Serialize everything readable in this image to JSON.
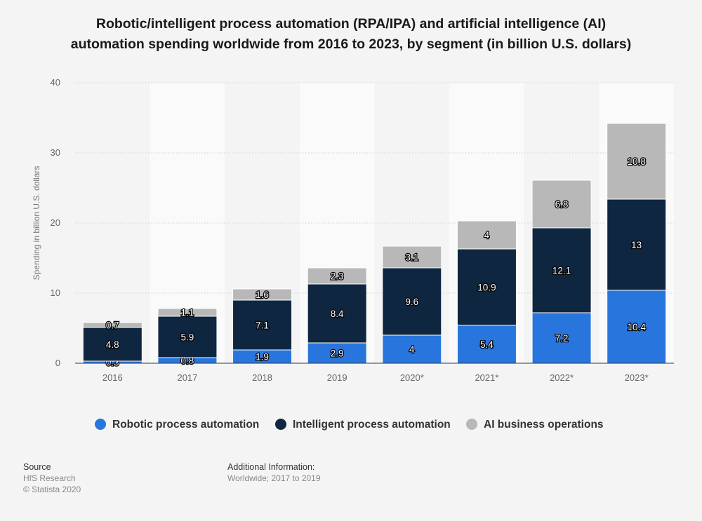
{
  "chart_data": {
    "type": "bar",
    "stacked": true,
    "title": "Robotic/intelligent process automation (RPA/IPA) and artificial intelligence (AI) automation spending worldwide from 2016 to 2023, by segment (in billion U.S. dollars)",
    "title_lines": [
      "Robotic/intelligent process automation (RPA/IPA) and artificial intelligence (AI)",
      "automation spending worldwide from 2016 to 2023, by segment (in billion U.S. dollars)"
    ],
    "xlabel": "",
    "ylabel": "Spending in billion U.S. dollars",
    "ylim": [
      0,
      40
    ],
    "yticks": [
      0,
      10,
      20,
      30,
      40
    ],
    "grid": true,
    "legend_position": "bottom",
    "categories": [
      "2016",
      "2017",
      "2018",
      "2019",
      "2020*",
      "2021*",
      "2022*",
      "2023*"
    ],
    "series": [
      {
        "name": "Robotic process automation",
        "color": "#2876dd",
        "values": [
          0.3,
          0.8,
          1.9,
          2.9,
          4,
          5.4,
          7.2,
          10.4
        ]
      },
      {
        "name": "Intelligent process automation",
        "color": "#0f2640",
        "values": [
          4.8,
          5.9,
          7.1,
          8.4,
          9.6,
          10.9,
          12.1,
          13
        ]
      },
      {
        "name": "AI business operations",
        "color": "#b8b8b8",
        "values": [
          0.7,
          1.1,
          1.6,
          2.3,
          3.1,
          4,
          6.8,
          10.8
        ]
      }
    ]
  },
  "footer": {
    "source_heading": "Source",
    "source_lines": [
      "HfS Research",
      "© Statista 2020"
    ],
    "info_heading": "Additional Information:",
    "info_text": "Worldwide; 2017 to 2019"
  }
}
